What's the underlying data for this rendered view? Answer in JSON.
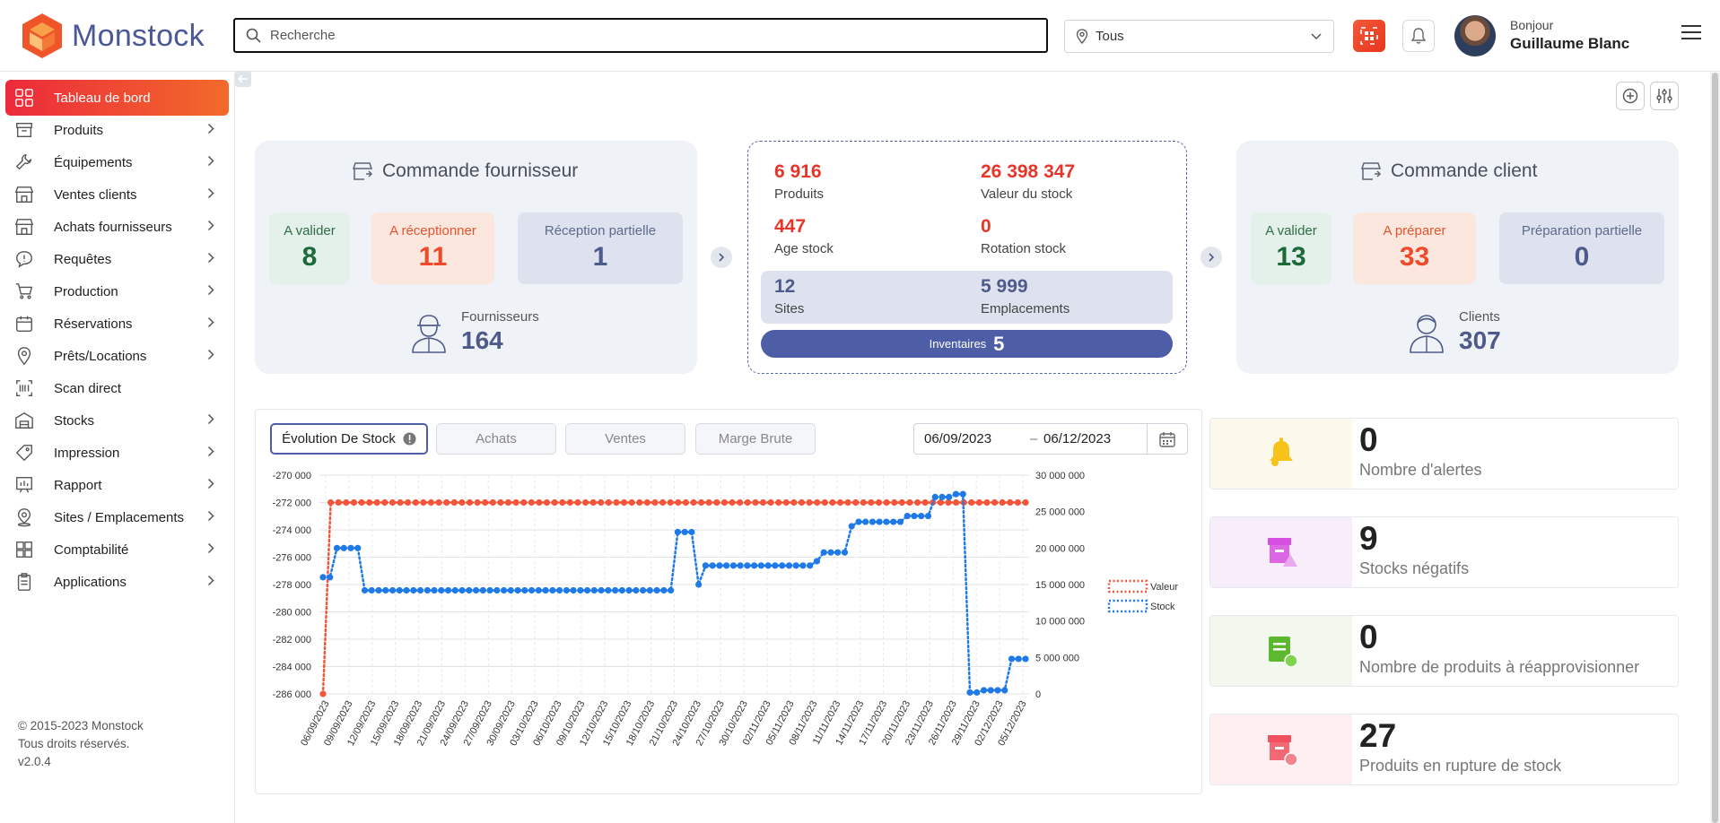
{
  "app": {
    "name": "Monstock",
    "version": "v2.0.4"
  },
  "search": {
    "placeholder": "Recherche"
  },
  "location": {
    "selected": "Tous"
  },
  "user": {
    "greeting": "Bonjour",
    "name": "Guillaume Blanc"
  },
  "sidebar": {
    "items": [
      {
        "label": "Tableau de bord",
        "icon": "dashboard-grid-icon",
        "active": true
      },
      {
        "label": "Produits",
        "icon": "box-icon"
      },
      {
        "label": "Équipements",
        "icon": "wrench-icon"
      },
      {
        "label": "Ventes clients",
        "icon": "store-icon"
      },
      {
        "label": "Achats fournisseurs",
        "icon": "store-icon"
      },
      {
        "label": "Requêtes",
        "icon": "message-alert-icon"
      },
      {
        "label": "Production",
        "icon": "cart-icon"
      },
      {
        "label": "Réservations",
        "icon": "calendar-icon"
      },
      {
        "label": "Prêts/Locations",
        "icon": "location-pin-icon"
      },
      {
        "label": "Scan direct",
        "icon": "barcode-scan-icon"
      },
      {
        "label": "Stocks",
        "icon": "warehouse-icon"
      },
      {
        "label": "Impression",
        "icon": "tag-icon"
      },
      {
        "label": "Rapport",
        "icon": "report-chart-icon"
      },
      {
        "label": "Sites / Emplacements",
        "icon": "site-pin-icon"
      },
      {
        "label": "Comptabilité",
        "icon": "calculator-icon"
      },
      {
        "label": "Applications",
        "icon": "clipboard-icon"
      }
    ],
    "footer": {
      "copyright": "© 2015-2023 Monstock",
      "rights": "Tous droits réservés.",
      "version": "v2.0.4"
    }
  },
  "supplier_card": {
    "title": "Commande fournisseur",
    "tiles": [
      {
        "label": "A valider",
        "value": "8"
      },
      {
        "label": "A réceptionner",
        "value": "11"
      },
      {
        "label": "Réception partielle",
        "value": "1"
      }
    ],
    "people_label": "Fournisseurs",
    "people_value": "164"
  },
  "stock_summary": {
    "products_value": "6 916",
    "products_label": "Produits",
    "stock_value": "26 398 347",
    "stock_label": "Valeur du stock",
    "age_value": "447",
    "age_label": "Age stock",
    "rotation_value": "0",
    "rotation_label": "Rotation stock",
    "sites_value": "12",
    "sites_label": "Sites",
    "locations_value": "5 999",
    "locations_label": "Emplacements",
    "inventories_label": "Inventaires",
    "inventories_value": "5"
  },
  "client_card": {
    "title": "Commande client",
    "tiles": [
      {
        "label": "A valider",
        "value": "13"
      },
      {
        "label": "A préparer",
        "value": "33"
      },
      {
        "label": "Préparation partielle",
        "value": "0"
      }
    ],
    "people_label": "Clients",
    "people_value": "307"
  },
  "chart_tabs": [
    "Évolution De Stock",
    "Achats",
    "Ventes",
    "Marge Brute"
  ],
  "date_range": {
    "start": "06/09/2023",
    "separator": "–",
    "end": "06/12/2023"
  },
  "kpis": [
    {
      "value": "0",
      "label": "Nombre d'alertes",
      "icon": "bell-icon",
      "color": "#f7c21a",
      "bg": "#fdf8ec"
    },
    {
      "value": "9",
      "label": "Stocks négatifs",
      "icon": "box-warning-icon",
      "color": "#d64fe0",
      "bg": "#f8eefb"
    },
    {
      "value": "0",
      "label": "Nombre de produits à réapprovisionner",
      "icon": "clipboard-refresh-icon",
      "color": "#5cb82e",
      "bg": "#f2f8ee"
    },
    {
      "value": "27",
      "label": "Produits en rupture de stock",
      "icon": "box-clock-icon",
      "color": "#f0505e",
      "bg": "#fdeeef"
    }
  ],
  "chart_data": {
    "type": "line",
    "x_ticks": [
      "06/09/2023",
      "09/09/2023",
      "12/09/2023",
      "15/09/2023",
      "18/09/2023",
      "21/09/2023",
      "24/09/2023",
      "27/09/2023",
      "30/09/2023",
      "03/10/2023",
      "06/10/2023",
      "09/10/2023",
      "12/10/2023",
      "15/10/2023",
      "18/10/2023",
      "21/10/2023",
      "24/10/2023",
      "27/10/2023",
      "30/10/2023",
      "02/11/2023",
      "05/11/2023",
      "08/11/2023",
      "11/11/2023",
      "14/11/2023",
      "17/11/2023",
      "20/11/2023",
      "23/11/2023",
      "26/11/2023",
      "29/11/2023",
      "02/12/2023",
      "05/12/2023"
    ],
    "y_left": {
      "ticks": [
        "-270 000",
        "-272 000",
        "-274 000",
        "-276 000",
        "-278 000",
        "-280 000",
        "-282 000",
        "-284 000",
        "-286 000"
      ],
      "range": [
        -286000,
        -270000
      ]
    },
    "y_right": {
      "ticks": [
        "30 000 000",
        "25 000 000",
        "20 000 000",
        "15 000 000",
        "10 000 000",
        "5 000 000",
        "0"
      ],
      "range": [
        0,
        30000000
      ]
    },
    "series": [
      {
        "name": "Valeur",
        "axis": "left",
        "color": "#f2553a",
        "style": "dotted",
        "values": [
          -286000,
          -272000,
          -272000,
          -272000,
          -272000,
          -272000,
          -272000,
          -272000,
          -272000,
          -272000,
          -272000,
          -272000,
          -272000,
          -272000,
          -272000,
          -272000,
          -272000,
          -272000,
          -272000,
          -272000,
          -272000,
          -272000,
          -272000,
          -272000,
          -272000,
          -272000,
          -272000,
          -272000,
          -272000,
          -272000,
          -272000,
          -272000,
          -272000,
          -272000,
          -272000,
          -272000,
          -272000,
          -272000,
          -272000,
          -272000,
          -272000,
          -272000,
          -272000,
          -272000,
          -272000,
          -272000,
          -272000,
          -272000,
          -272000,
          -272000,
          -272000,
          -272000,
          -272000,
          -272000,
          -272000,
          -272000,
          -272000,
          -272000,
          -272000,
          -272000,
          -272000,
          -272000,
          -272000,
          -272000,
          -272000,
          -272000,
          -272000,
          -272000,
          -272000,
          -272000,
          -272000,
          -272000,
          -272000,
          -272000,
          -272000,
          -272000,
          -272000,
          -272000,
          -272000,
          -272000,
          -272000,
          -272000,
          -272000,
          -272000,
          -272000,
          -272000,
          -272000,
          -272000,
          -272000,
          -272000,
          -272000,
          -272000
        ]
      },
      {
        "name": "Stock",
        "axis": "right",
        "color": "#1f7ae8",
        "style": "dotted",
        "values": [
          16000000,
          16000000,
          20000000,
          20000000,
          20000000,
          20000000,
          14200000,
          14200000,
          14200000,
          14200000,
          14200000,
          14200000,
          14200000,
          14200000,
          14200000,
          14200000,
          14200000,
          14200000,
          14200000,
          14200000,
          14200000,
          14200000,
          14200000,
          14200000,
          14200000,
          14200000,
          14200000,
          14200000,
          14200000,
          14200000,
          14200000,
          14200000,
          14200000,
          14200000,
          14200000,
          14200000,
          14200000,
          14200000,
          14200000,
          14200000,
          14200000,
          14200000,
          14200000,
          14200000,
          14200000,
          14200000,
          14200000,
          14200000,
          14200000,
          14200000,
          14200000,
          22200000,
          22200000,
          22200000,
          15000000,
          17600000,
          17600000,
          17600000,
          17600000,
          17600000,
          17600000,
          17600000,
          17600000,
          17600000,
          17600000,
          17600000,
          17600000,
          17600000,
          17600000,
          17600000,
          17600000,
          18200000,
          19400000,
          19400000,
          19400000,
          19400000,
          23000000,
          23600000,
          23600000,
          23600000,
          23600000,
          23600000,
          23600000,
          23600000,
          24400000,
          24400000,
          24400000,
          24400000,
          27000000,
          27000000,
          27000000,
          27400000,
          27400000,
          200000,
          200000,
          500000,
          500000,
          500000,
          500000,
          4800000,
          4800000,
          4800000
        ]
      }
    ],
    "legend": "right"
  }
}
